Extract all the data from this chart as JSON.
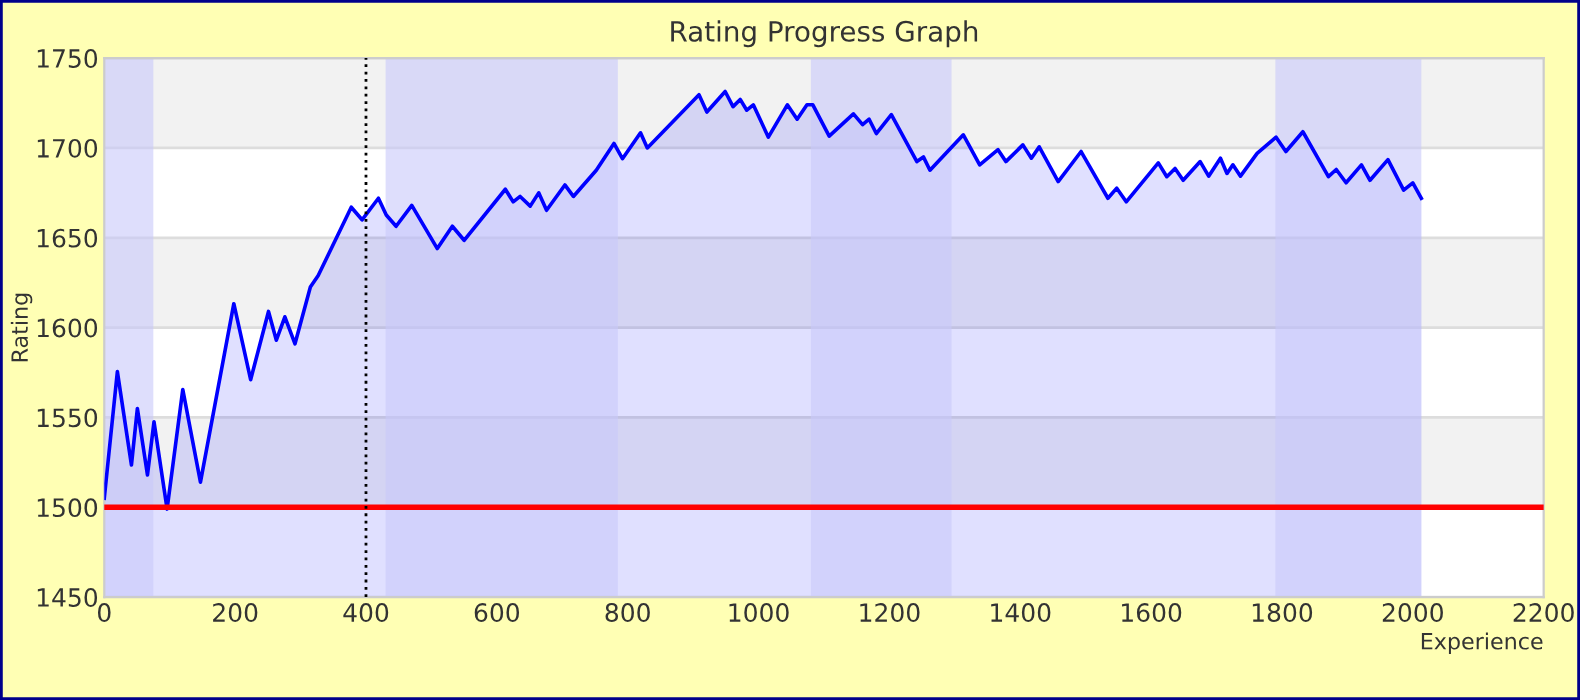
{
  "chart_data": {
    "type": "area",
    "title": "Rating Progress Graph",
    "xlabel": "Experience",
    "ylabel": "Rating",
    "series": [
      {
        "color": "#0000ff",
        "x": [
          0,
          20,
          41.5,
          50.6,
          66,
          76,
          96,
          120,
          147,
          198,
          223.7,
          251,
          263,
          276,
          291.5,
          315,
          327,
          377.5,
          394,
          419,
          431,
          446,
          470,
          509,
          532,
          550,
          613,
          625,
          635.6,
          651,
          664,
          676,
          704,
          717,
          752,
          779,
          792,
          819.6,
          830,
          909,
          921,
          949,
          961,
          972,
          982,
          992,
          1015,
          1044,
          1059,
          1074,
          1083,
          1108,
          1145,
          1159,
          1169,
          1180,
          1203,
          1242,
          1252,
          1262,
          1313,
          1338,
          1366,
          1378,
          1404,
          1417,
          1429,
          1458,
          1493,
          1534,
          1547.5,
          1562,
          1611,
          1624,
          1636.6,
          1649,
          1675,
          1688,
          1706,
          1716,
          1725,
          1736.6,
          1762,
          1791,
          1806,
          1832,
          1871,
          1883,
          1898,
          1921.5,
          1934.6,
          1962,
          1986,
          2000,
          2013
        ],
        "values": [
          1505,
          1575.5,
          1523.5,
          1555,
          1518,
          1547.6,
          1499,
          1565.5,
          1514,
          1613.3,
          1571,
          1609,
          1593,
          1606,
          1591,
          1622.6,
          1629,
          1667,
          1660,
          1672,
          1662.7,
          1656.4,
          1668,
          1644,
          1656.4,
          1648.6,
          1677,
          1670,
          1673,
          1667.6,
          1675,
          1665.3,
          1679.4,
          1673,
          1687.6,
          1702.5,
          1694,
          1708.4,
          1700,
          1729.6,
          1720,
          1731.4,
          1723,
          1727,
          1721,
          1724,
          1706,
          1724,
          1716,
          1724,
          1724,
          1706.6,
          1719,
          1713,
          1716,
          1708,
          1718.5,
          1692.4,
          1695,
          1687.6,
          1707.3,
          1690.6,
          1699,
          1692.4,
          1701.7,
          1694.3,
          1700.6,
          1681.3,
          1698,
          1672,
          1677.6,
          1670,
          1691.7,
          1684,
          1688.6,
          1682,
          1692.4,
          1684.3,
          1694.3,
          1685.8,
          1690.6,
          1684.3,
          1697,
          1706,
          1698,
          1709,
          1684,
          1688,
          1680.6,
          1690.6,
          1682,
          1693.5,
          1676.5,
          1680.6,
          1672
        ]
      }
    ],
    "xlim": [
      0,
      2200
    ],
    "xticks": [
      0,
      200,
      400,
      600,
      800,
      1000,
      1200,
      1400,
      1600,
      1800,
      2000,
      2200
    ],
    "ylim": [
      1450,
      1750
    ],
    "yticks": [
      1450,
      1500,
      1550,
      1600,
      1650,
      1700,
      1750
    ],
    "grid": "y",
    "legend": false,
    "ref_lines": [
      {
        "axis": "y",
        "value": 1500,
        "color": "#ff0000",
        "line_style": "solid"
      },
      {
        "axis": "x",
        "value": 400,
        "color": "#000000",
        "line_style": "dotted"
      }
    ],
    "bands": [
      {
        "axis": "y",
        "from": 1500,
        "to": 1550,
        "color": "#f2f2f2"
      },
      {
        "axis": "y",
        "from": 1600,
        "to": 1650,
        "color": "#f2f2f2"
      },
      {
        "axis": "y",
        "from": 1700,
        "to": 1750,
        "color": "#f2f2f2"
      },
      {
        "axis": "x",
        "from": 0,
        "to": 75,
        "color": "#c8c8fa"
      },
      {
        "axis": "x",
        "from": 430,
        "to": 785,
        "color": "#c8c8fa"
      },
      {
        "axis": "x",
        "from": 1080,
        "to": 1295,
        "color": "#c8c8fa"
      },
      {
        "axis": "x",
        "from": 1790,
        "to": 2013,
        "color": "#c8c8fa"
      }
    ]
  }
}
